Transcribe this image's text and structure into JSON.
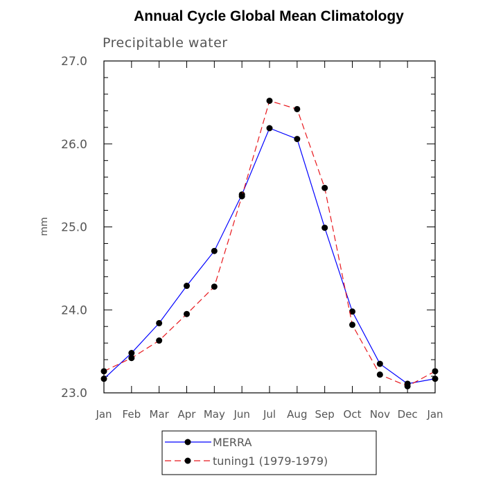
{
  "chart_data": {
    "type": "line",
    "title": "Annual Cycle Global Mean Climatology",
    "subtitle": "Precipitable water",
    "xlabel": "",
    "ylabel": "mm",
    "categories": [
      "Jan",
      "Feb",
      "Mar",
      "Apr",
      "May",
      "Jun",
      "Jul",
      "Aug",
      "Sep",
      "Oct",
      "Nov",
      "Dec",
      "Jan"
    ],
    "yticks": [
      "23.0",
      "24.0",
      "25.0",
      "26.0",
      "27.0"
    ],
    "ylim": [
      23.0,
      27.0
    ],
    "grid": false,
    "legend_position": "bottom",
    "series": [
      {
        "name": "MERRA",
        "color": "#0000ff",
        "dash": "solid",
        "values": [
          23.17,
          23.48,
          23.84,
          24.29,
          24.71,
          25.39,
          26.19,
          26.06,
          24.99,
          23.98,
          23.35,
          23.11,
          23.17
        ]
      },
      {
        "name": "tuning1 (1979-1979)",
        "color": "#e8171c",
        "dash": "dashed",
        "values": [
          23.26,
          23.42,
          23.63,
          23.95,
          24.28,
          25.37,
          26.52,
          26.42,
          25.47,
          23.82,
          23.22,
          23.08,
          23.26
        ]
      }
    ]
  }
}
